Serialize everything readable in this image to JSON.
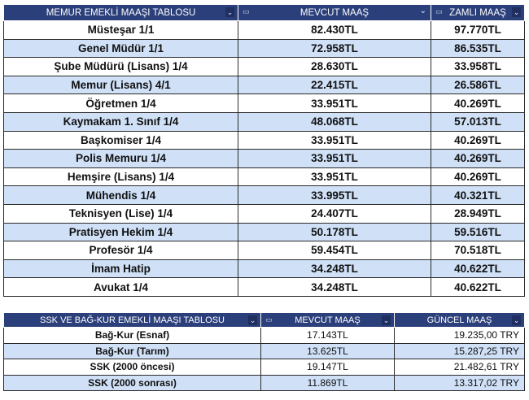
{
  "memur": {
    "headers": [
      "MEMUR EMEKLİ MAAŞI TABLOSU",
      "MEVCUT MAAŞ",
      "ZAMLI MAAŞ"
    ],
    "rows": [
      [
        "Müsteşar 1/1",
        "82.430TL",
        "97.770TL"
      ],
      [
        "Genel Müdür 1/1",
        "72.958TL",
        "86.535TL"
      ],
      [
        "Şube Müdürü (Lisans) 1/4",
        "28.630TL",
        "33.958TL"
      ],
      [
        "Memur (Lisans) 4/1",
        "22.415TL",
        "26.586TL"
      ],
      [
        "Öğretmen 1/4",
        "33.951TL",
        "40.269TL"
      ],
      [
        "Kaymakam 1. Sınıf 1/4",
        "48.068TL",
        "57.013TL"
      ],
      [
        "Başkomiser 1/4",
        "33.951TL",
        "40.269TL"
      ],
      [
        "Polis Memuru 1/4",
        "33.951TL",
        "40.269TL"
      ],
      [
        "Hemşire (Lisans) 1/4",
        "33.951TL",
        "40.269TL"
      ],
      [
        "Mühendis 1/4",
        "33.995TL",
        "40.321TL"
      ],
      [
        "Teknisyen (Lise) 1/4",
        "24.407TL",
        "28.949TL"
      ],
      [
        "Pratisyen Hekim 1/4",
        "50.178TL",
        "59.516TL"
      ],
      [
        "Profesör 1/4",
        "59.454TL",
        "70.518TL"
      ],
      [
        "İmam Hatip",
        "34.248TL",
        "40.622TL"
      ],
      [
        "Avukat 1/4",
        "34.248TL",
        "40.622TL"
      ]
    ]
  },
  "ssk": {
    "headers": [
      "SSK VE BAĞ-KUR EMEKLİ MAAŞI TABLOSU",
      "MEVCUT MAAŞ",
      "GÜNCEL MAAŞ"
    ],
    "rows": [
      [
        "Bağ-Kur (Esnaf)",
        "17.143TL",
        "19.235,00 TRY"
      ],
      [
        "Bağ-Kur (Tarım)",
        "13.625TL",
        "15.287,25 TRY"
      ],
      [
        "SSK (2000 öncesi)",
        "19.147TL",
        "21.482,61 TRY"
      ],
      [
        "SSK (2000 sonrası)",
        "11.869TL",
        "13.317,02 TRY"
      ]
    ]
  },
  "icons": {
    "column_icon": "sort-icon",
    "menu_icon": "chevron-down-icon"
  },
  "colors": {
    "header_bg": "#2b3f7a",
    "alt_row": "#cfe0f7",
    "border": "#2a2a2a"
  }
}
